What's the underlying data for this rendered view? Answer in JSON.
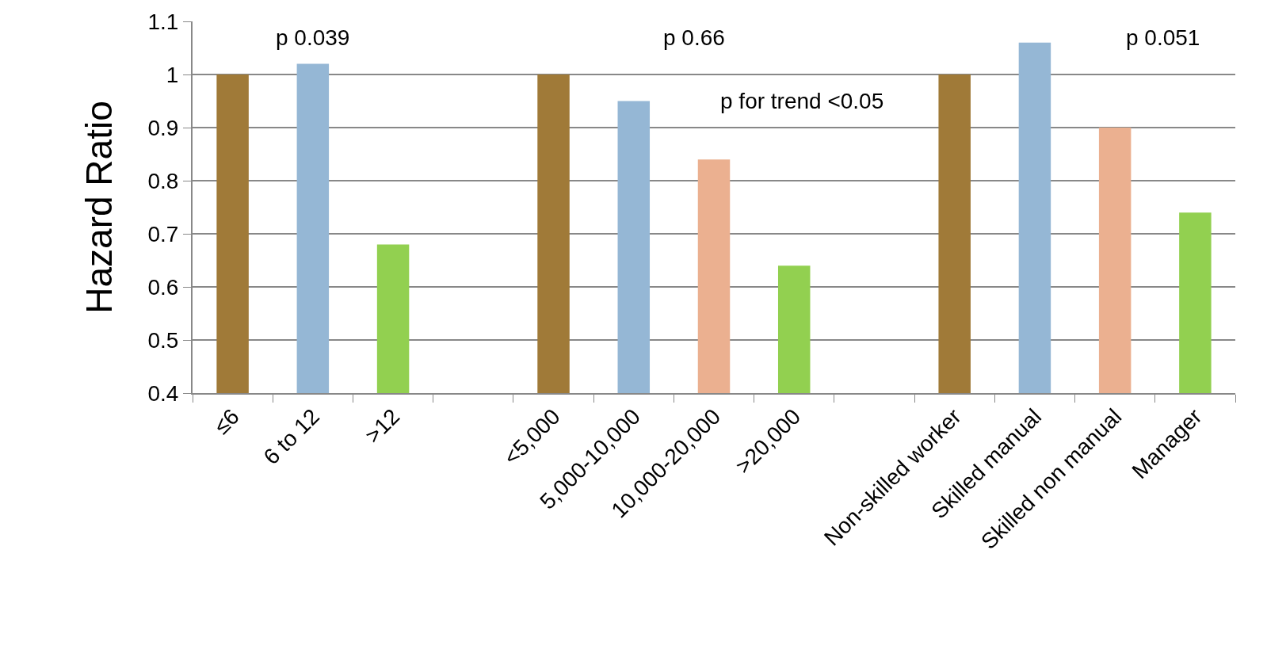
{
  "chart_data": {
    "type": "bar",
    "ylabel": "Hazard Ratio",
    "categories": [
      "≤6",
      "6 to 12",
      ">12",
      null,
      "<5,000",
      "5,000-10,000",
      "10,000-20,000",
      ">20,000",
      null,
      "Non-skilled worker",
      "Skilled manual",
      "Skilled non manual",
      "Manager"
    ],
    "values": [
      1,
      1.02,
      0.68,
      null,
      1,
      0.95,
      0.84,
      0.64,
      null,
      1,
      1.06,
      0.9,
      0.74
    ],
    "colors": [
      "#a07a38",
      "#95b7d5",
      "#92d050",
      null,
      "#a07a38",
      "#95b7d5",
      "#ebb090",
      "#92d050",
      null,
      "#a07a38",
      "#95b7d5",
      "#ebb090",
      "#92d050"
    ],
    "ylim": [
      0.4,
      1.1
    ],
    "yticks": [
      0.4,
      0.5,
      0.6,
      0.7,
      0.8,
      0.9,
      1,
      1.1
    ],
    "grid": "y",
    "annotations": [
      "p 0.039",
      "p 0.66",
      "p for trend <0.05",
      "p 0.051"
    ]
  }
}
